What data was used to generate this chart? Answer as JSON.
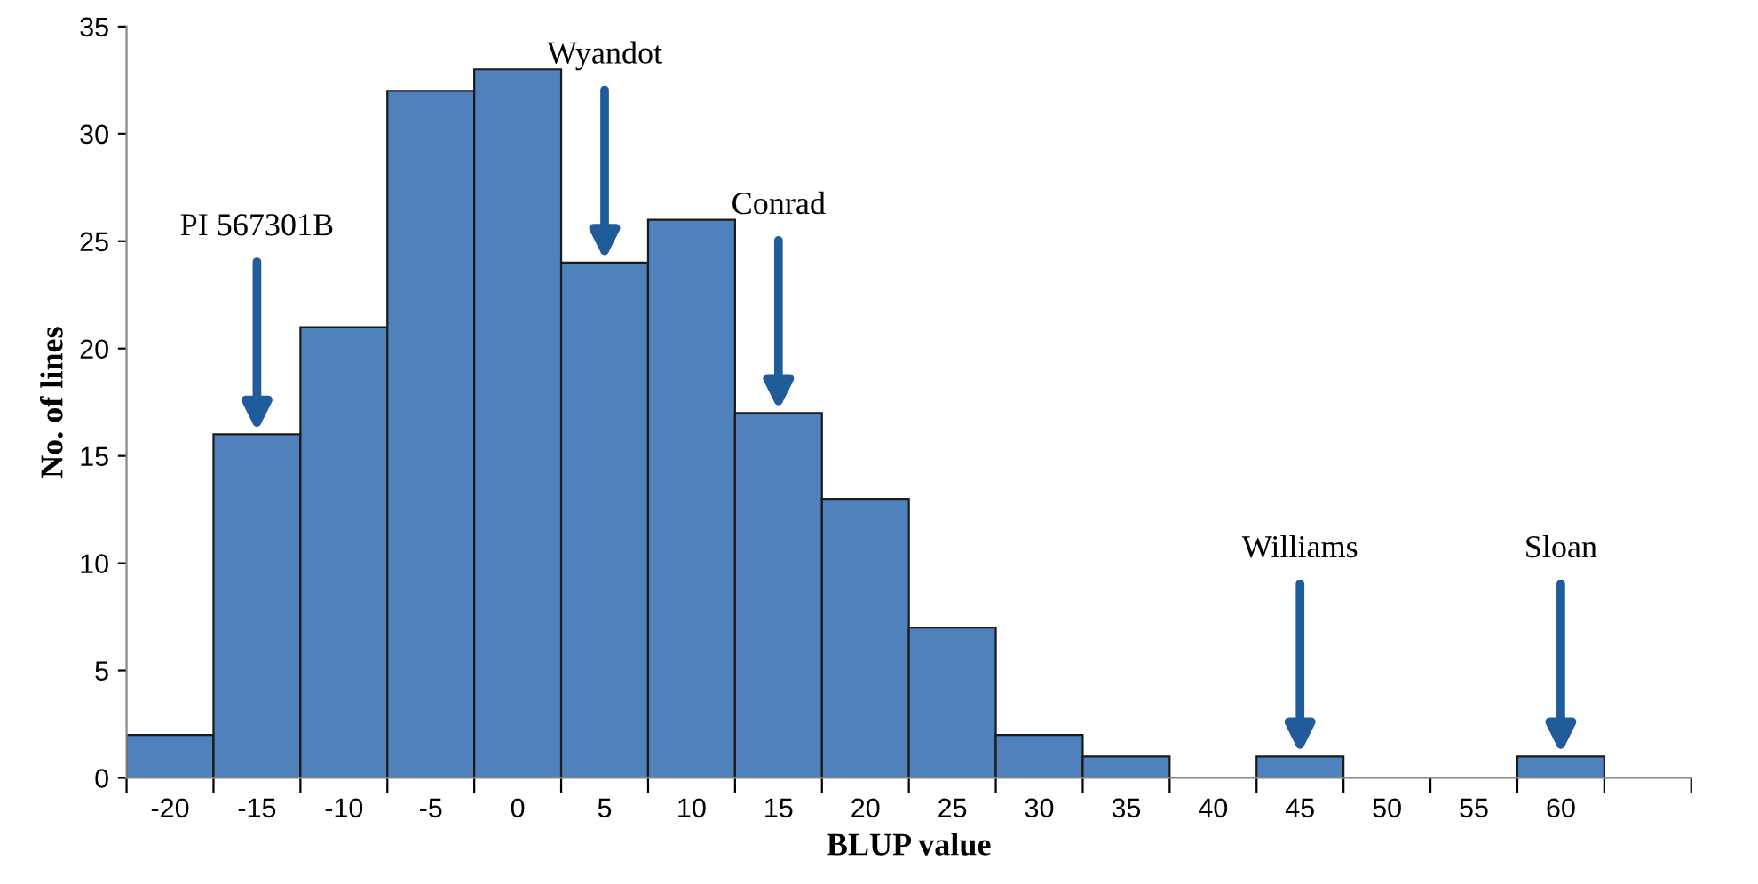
{
  "chart_data": {
    "type": "histogram",
    "xlabel": "BLUP value",
    "ylabel": "No. of lines",
    "bins": [
      -22.5,
      -17.5,
      -12.5,
      -7.5,
      -2.5,
      2.5,
      7.5,
      12.5,
      17.5,
      22.5,
      27.5,
      32.5,
      37.5,
      42.5,
      47.5,
      52.5,
      57.5,
      62.5
    ],
    "values": [
      2,
      16,
      21,
      32,
      33,
      24,
      26,
      17,
      13,
      7,
      2,
      1,
      0,
      1,
      0,
      0,
      1
    ],
    "color": "#4f81bd",
    "xlim": [
      -22.5,
      67.5
    ],
    "xticks": [
      {
        "value": -20,
        "label": "-20"
      },
      {
        "value": -15,
        "label": "-15"
      },
      {
        "value": -10,
        "label": "-10"
      },
      {
        "value": -5,
        "label": "-5"
      },
      0,
      5,
      10,
      15,
      20,
      25,
      30,
      35,
      40,
      45,
      50,
      55,
      60,
      {
        "value": -22.5,
        "label": null
      },
      {
        "value": -17.5,
        "label": null
      },
      {
        "value": -12.5,
        "label": null
      },
      {
        "value": -7.5,
        "label": null
      },
      {
        "value": -2.5,
        "label": null
      },
      {
        "value": 2.5,
        "label": null
      },
      {
        "value": 7.5,
        "label": null
      },
      {
        "value": 12.5,
        "label": null
      },
      {
        "value": 17.5,
        "label": null
      },
      {
        "value": 22.5,
        "label": null
      },
      {
        "value": 27.5,
        "label": null
      },
      {
        "value": 32.5,
        "label": null
      },
      {
        "value": 37.5,
        "label": null
      },
      {
        "value": 42.5,
        "label": null
      },
      {
        "value": 47.5,
        "label": null
      },
      {
        "value": 52.5,
        "label": null
      },
      {
        "value": 57.5,
        "label": null
      },
      {
        "value": 62.5,
        "label": null
      },
      {
        "value": 67.5,
        "label": null
      }
    ],
    "ylim": [
      0,
      35
    ],
    "yticks": [
      0,
      5,
      10,
      15,
      20,
      25,
      30,
      35
    ],
    "grid": false,
    "legend": false,
    "annotations": [
      {
        "text": "PI 567301B",
        "x": -15,
        "y": 16
      },
      {
        "text": "Wyandot",
        "x": 5,
        "y": 24
      },
      {
        "text": "Conrad",
        "x": 15,
        "y": 17
      },
      {
        "text": "Williams",
        "x": 45,
        "y": 1
      },
      {
        "text": "Sloan",
        "x": 60,
        "y": 1
      }
    ]
  }
}
